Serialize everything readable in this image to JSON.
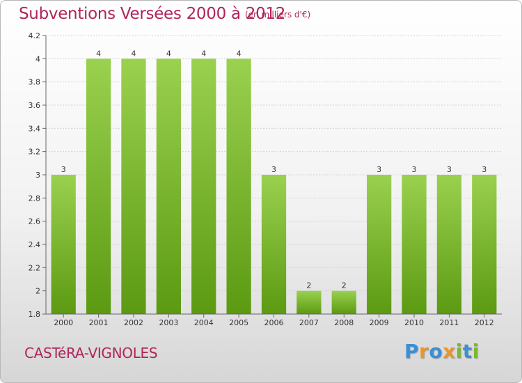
{
  "title": "Subventions Versées 2000 à 2012",
  "unit_label": "(en milliers d'€)",
  "commune": "CASTéRA-VIGNOLES",
  "logo": {
    "text": "Proxiti",
    "letters": [
      {
        "char": "P",
        "color": "#3a8fd6"
      },
      {
        "char": "r",
        "color": "#e8962e"
      },
      {
        "char": "o",
        "color": "#3a8fd6"
      },
      {
        "char": "x",
        "color": "#e8962e"
      },
      {
        "char": "i",
        "color": "#7ab82e"
      },
      {
        "char": "t",
        "color": "#3a8fd6"
      },
      {
        "char": "i",
        "color": "#7ab82e"
      }
    ]
  },
  "colors": {
    "bar_top": "#9ad14f",
    "bar_bottom": "#5c9a12",
    "title": "#b0245a"
  },
  "chart_data": {
    "type": "bar",
    "title": "Subventions Versées 2000 à 2012",
    "categories": [
      "2000",
      "2001",
      "2002",
      "2003",
      "2004",
      "2005",
      "2006",
      "2007",
      "2008",
      "2009",
      "2010",
      "2011",
      "2012"
    ],
    "values": [
      3,
      4,
      4,
      4,
      4,
      4,
      3,
      2,
      2,
      3,
      3,
      3,
      3
    ],
    "data_labels": [
      "3",
      "4",
      "4",
      "4",
      "4",
      "4",
      "3",
      "2",
      "2",
      "3",
      "3",
      "3",
      "3"
    ],
    "ylim": [
      1.8,
      4.2
    ],
    "yticks": [
      1.8,
      2,
      2.2,
      2.4,
      2.6,
      2.8,
      3,
      3.2,
      3.4,
      3.6,
      3.8,
      4,
      4.2
    ],
    "ytick_labels": [
      "1.8",
      "2",
      "2.2",
      "2.4",
      "2.6",
      "2.8",
      "3",
      "3.2",
      "3.4",
      "3.6",
      "3.8",
      "4",
      "4.2"
    ],
    "grid": true,
    "legend": "none"
  }
}
